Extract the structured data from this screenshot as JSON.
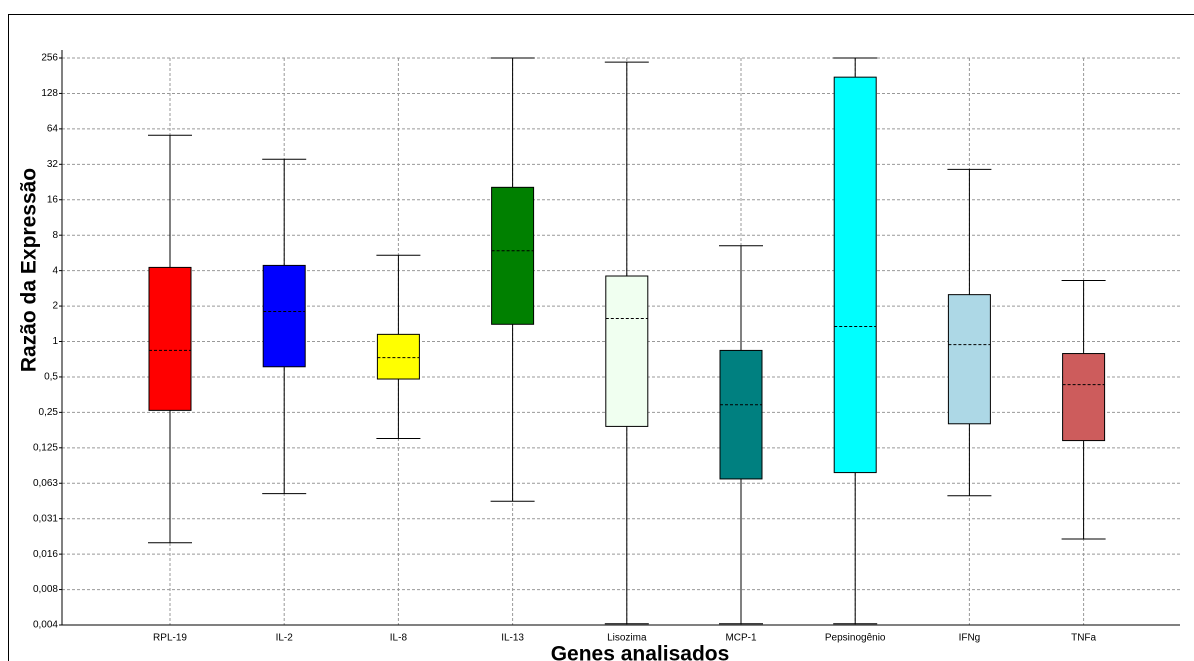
{
  "chart_data": {
    "type": "box",
    "xlabel": "Genes analisados",
    "ylabel": "Razão da Expressão",
    "categories": [
      "RPL-19",
      "IL-2",
      "IL-8",
      "IL-13",
      "Lisozima",
      "MCP-1",
      "Pepsinogênio",
      "IFNg",
      "TNFa"
    ],
    "boxes": [
      {
        "whisker_low": 0.0195,
        "q1": 0.26,
        "median": 0.84,
        "q3": 4.26,
        "whisker_high": 56.5,
        "color": "#ff0000"
      },
      {
        "whisker_low": 0.051,
        "q1": 0.61,
        "median": 1.8,
        "q3": 4.43,
        "whisker_high": 35.3,
        "color": "#0000ff"
      },
      {
        "whisker_low": 0.15,
        "q1": 0.48,
        "median": 0.73,
        "q3": 1.15,
        "whisker_high": 5.4,
        "color": "#ffff00"
      },
      {
        "whisker_low": 0.044,
        "q1": 1.4,
        "median": 5.9,
        "q3": 20.4,
        "whisker_high": 256,
        "color": "#008000"
      },
      {
        "whisker_low": 0.004,
        "q1": 0.19,
        "median": 1.57,
        "q3": 3.6,
        "whisker_high": 236,
        "color": "#f0fff0"
      },
      {
        "whisker_low": 0.004,
        "q1": 0.068,
        "median": 0.29,
        "q3": 0.84,
        "whisker_high": 6.5,
        "color": "#008080"
      },
      {
        "whisker_low": 0.004,
        "q1": 0.077,
        "median": 1.34,
        "q3": 176,
        "whisker_high": 256,
        "color": "#00ffff"
      },
      {
        "whisker_low": 0.049,
        "q1": 0.2,
        "median": 0.94,
        "q3": 2.5,
        "whisker_high": 29,
        "color": "#add8e6"
      },
      {
        "whisker_low": 0.021,
        "q1": 0.144,
        "median": 0.43,
        "q3": 0.79,
        "whisker_high": 3.3,
        "color": "#cd5c5c"
      }
    ],
    "log_scale": true,
    "grid": true,
    "ylim": [
      0.00390625,
      256
    ],
    "yticks": [
      {
        "value": 0.00390625,
        "label": "0,004"
      },
      {
        "value": 0.0078125,
        "label": "0,008"
      },
      {
        "value": 0.015625,
        "label": "0,016"
      },
      {
        "value": 0.03125,
        "label": "0,031"
      },
      {
        "value": 0.0625,
        "label": "0,063"
      },
      {
        "value": 0.125,
        "label": "0,125"
      },
      {
        "value": 0.25,
        "label": "0,25"
      },
      {
        "value": 0.5,
        "label": "0,5"
      },
      1,
      2,
      4,
      8,
      16,
      32,
      64,
      128,
      256
    ]
  }
}
